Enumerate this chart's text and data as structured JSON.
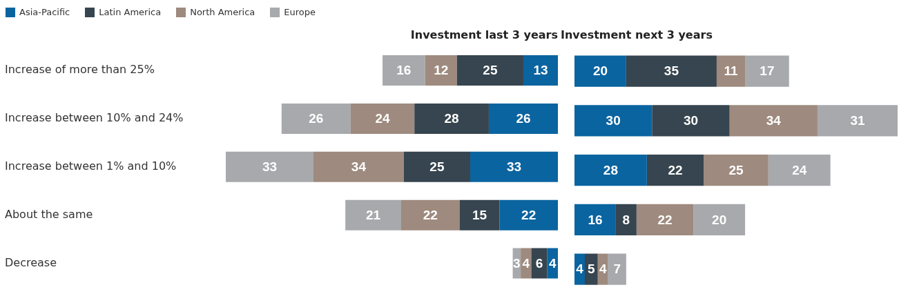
{
  "chart_data": [
    {
      "type": "bar",
      "orientation": "horizontal",
      "stacked": true,
      "title": "Investment last 3 years",
      "categories": [
        "Increase of more than 25%",
        "Increase between 10% and 24%",
        "Increase between 1% and 10%",
        "About the same",
        "Decrease"
      ],
      "tick_labels": "y",
      "legend": "top left",
      "data_labels": true,
      "series": [
        {
          "name": "Asia-Pacific",
          "color": "#0a64a0",
          "values": [
            13,
            26,
            33,
            22,
            4
          ]
        },
        {
          "name": "Latin America",
          "color": "#36454f",
          "values": [
            25,
            28,
            25,
            15,
            6
          ]
        },
        {
          "name": "North America",
          "color": "#9e8a7e",
          "values": [
            12,
            24,
            34,
            22,
            4
          ]
        },
        {
          "name": "Europe",
          "color": "#a7a9ac",
          "values": [
            16,
            26,
            33,
            21,
            3
          ]
        }
      ]
    },
    {
      "type": "bar",
      "orientation": "horizontal",
      "stacked": true,
      "title": "Investment next 3 years",
      "categories": [
        null,
        null,
        null,
        null,
        null
      ],
      "tick_labels": false,
      "data_labels": true,
      "series": [
        {
          "color": "#0a64a0",
          "values": [
            20,
            30,
            28,
            16,
            4
          ]
        },
        {
          "color": "#36454f",
          "values": [
            35,
            30,
            22,
            8,
            5
          ]
        },
        {
          "color": "#9e8a7e",
          "values": [
            11,
            34,
            25,
            22,
            4
          ]
        },
        {
          "color": "#a7a9ac",
          "values": [
            17,
            31,
            24,
            20,
            7
          ]
        }
      ]
    }
  ]
}
